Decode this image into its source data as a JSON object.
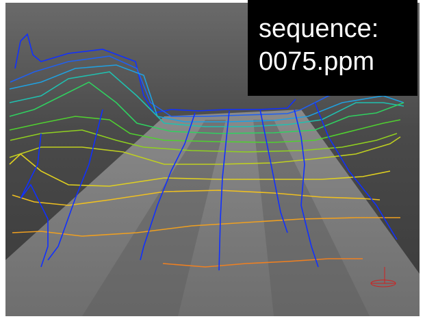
{
  "label": {
    "line1": "sequence:",
    "line2": "0075.ppm"
  }
}
